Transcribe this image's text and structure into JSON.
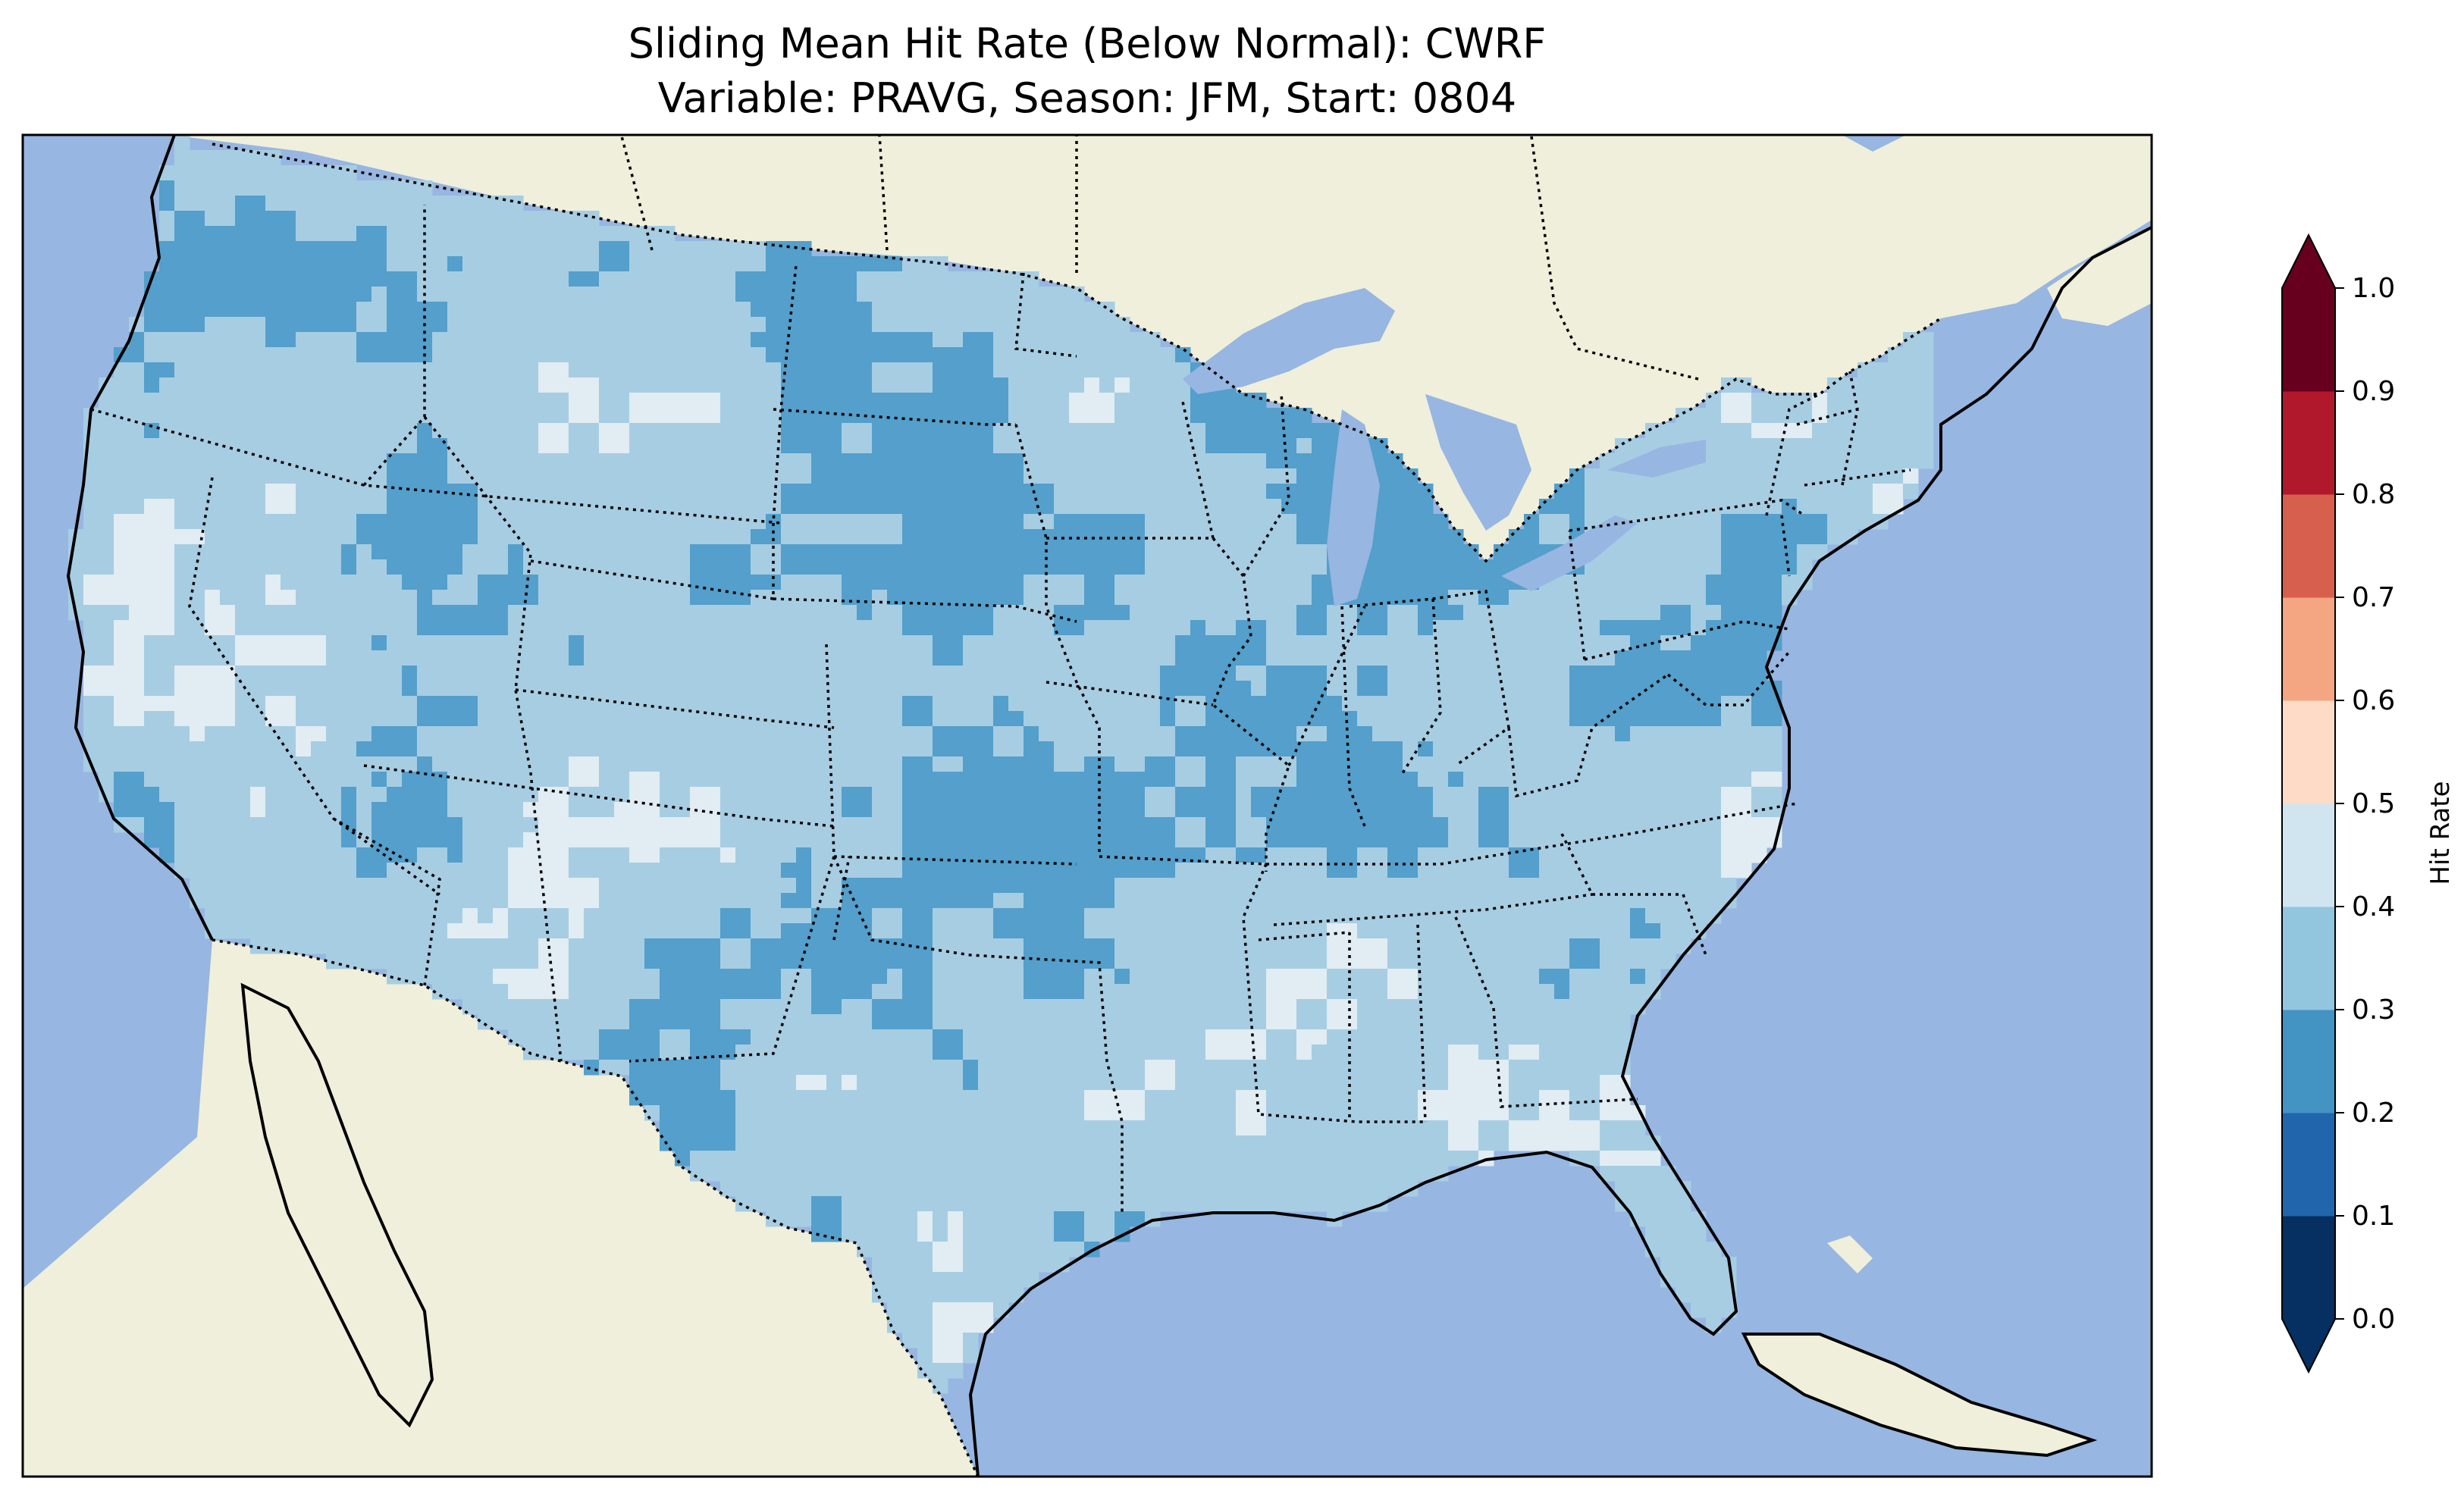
{
  "title": {
    "line1": "Sliding Mean Hit Rate (Below Normal): CWRF",
    "line2": "Variable: PRAVG, Season: JFM, Start: 0804"
  },
  "colors": {
    "ocean": "#97b6e1",
    "land": "#efefdb",
    "cells_low": "#549fcb",
    "cells_mid": "#a7cde3",
    "cells_high": "#e1ecf3"
  },
  "colorbar": {
    "label": "Hit Rate",
    "ticks": [
      "0.0",
      "0.1",
      "0.2",
      "0.3",
      "0.4",
      "0.5",
      "0.6",
      "0.7",
      "0.8",
      "0.9",
      "1.0"
    ],
    "bins": [
      {
        "range": [
          0.0,
          0.1
        ],
        "color": "#053061"
      },
      {
        "range": [
          0.1,
          0.2
        ],
        "color": "#2166ac"
      },
      {
        "range": [
          0.2,
          0.3
        ],
        "color": "#4393c3"
      },
      {
        "range": [
          0.3,
          0.4
        ],
        "color": "#92c5de"
      },
      {
        "range": [
          0.4,
          0.5
        ],
        "color": "#d1e5f0"
      },
      {
        "range": [
          0.5,
          0.6
        ],
        "color": "#fddbc7"
      },
      {
        "range": [
          0.6,
          0.7
        ],
        "color": "#f4a582"
      },
      {
        "range": [
          0.7,
          0.8
        ],
        "color": "#d6604d"
      },
      {
        "range": [
          0.8,
          0.9
        ],
        "color": "#b2182b"
      },
      {
        "range": [
          0.9,
          1.0
        ],
        "color": "#67001f"
      }
    ],
    "extend": "both"
  }
}
